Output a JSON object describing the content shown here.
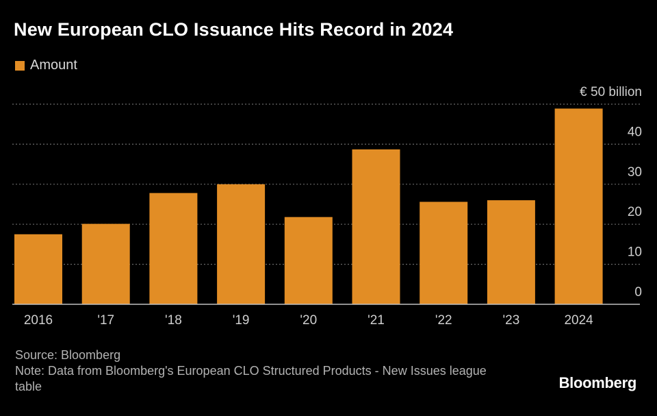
{
  "title": "New European CLO Issuance Hits Record in 2024",
  "legend_label": "Amount",
  "footer": {
    "source": "Source: Bloomberg",
    "note": "Note: Data from Bloomberg's European CLO Structured Products - New Issues league table"
  },
  "brand": "Bloomberg",
  "colors": {
    "background": "#000000",
    "bar": "#e28d25",
    "grid": "#6a6a6a",
    "axis_text": "#cfcfcf"
  },
  "chart_data": {
    "type": "bar",
    "title": "New European CLO Issuance Hits Record in 2024",
    "categories": [
      "2016",
      "'17",
      "'18",
      "'19",
      "'20",
      "'21",
      "'22",
      "'23",
      "2024"
    ],
    "series": [
      {
        "name": "Amount",
        "values": [
          17.5,
          20.1,
          27.8,
          30.0,
          21.8,
          38.7,
          25.6,
          26.0,
          48.9
        ]
      }
    ],
    "y_ticks": [
      0,
      10,
      20,
      30,
      40,
      50
    ],
    "y_tick_labels": [
      "0",
      "10",
      "20",
      "30",
      "40",
      "€ 50 billion"
    ],
    "ylim": [
      0,
      50
    ],
    "ylabel": "",
    "xlabel": "",
    "grid": true,
    "y_axis_side": "right",
    "legend_position": "top-left"
  }
}
